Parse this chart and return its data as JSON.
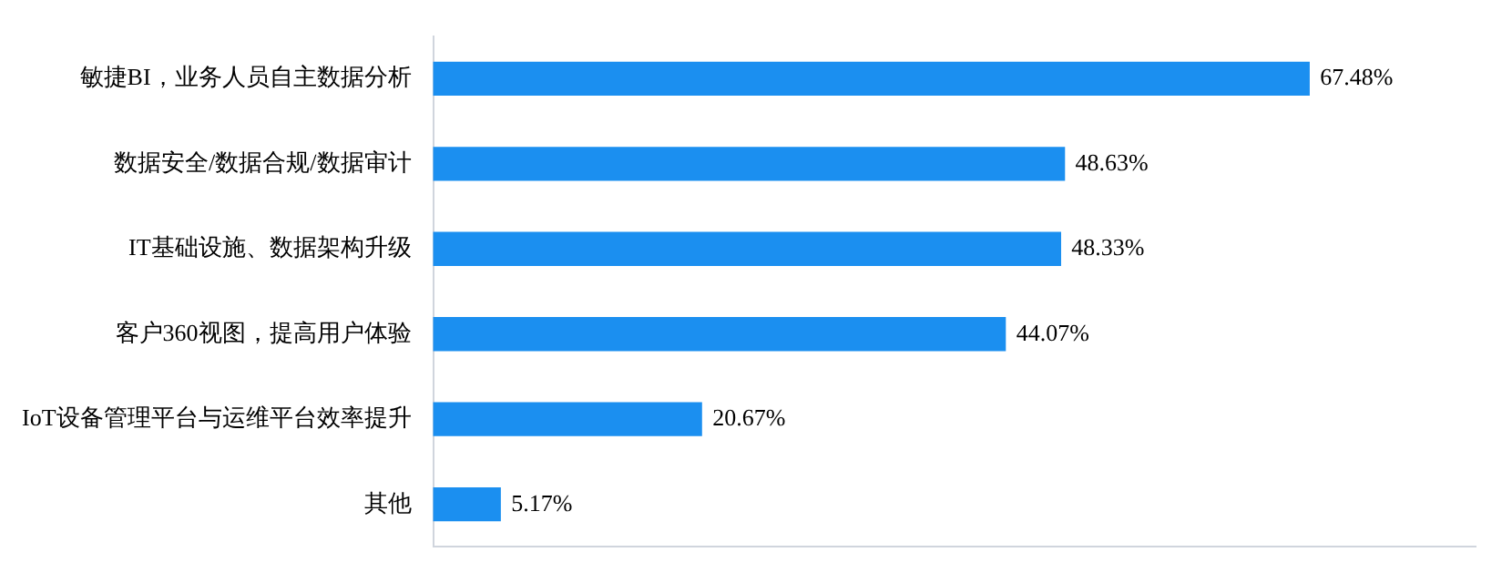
{
  "chart_data": {
    "type": "bar",
    "orientation": "horizontal",
    "categories": [
      "敏捷BI，业务人员自主数据分析",
      "数据安全/数据合规/数据审计",
      "IT基础设施、数据架构升级",
      "客户360视图，提高用户体验",
      "IoT设备管理平台与运维平台效率提升",
      "其他"
    ],
    "values": [
      67.48,
      48.63,
      48.33,
      44.07,
      20.67,
      5.17
    ],
    "value_labels": [
      "67.48%",
      "48.63%",
      "48.33%",
      "44.07%",
      "20.67%",
      "5.17%"
    ],
    "color": "#1b8ff0",
    "grid": false,
    "legend": false,
    "tick_labels": "y"
  }
}
